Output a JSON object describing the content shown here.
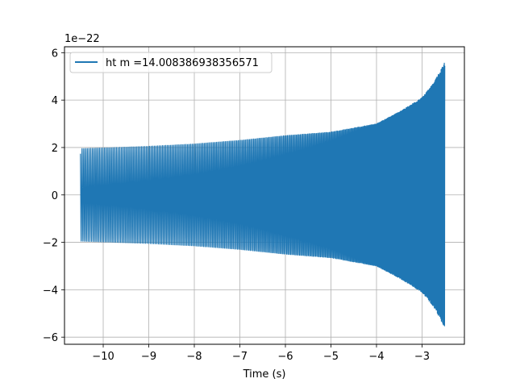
{
  "chart_data": {
    "type": "line",
    "xlabel": "Time (s)",
    "ylabel": "",
    "offset_text": "1e−22",
    "xlim": [
      -10.85,
      -2.07
    ],
    "ylim": [
      -6.3e-22,
      6.25e-22
    ],
    "xticks": [
      -10,
      -9,
      -8,
      -7,
      -6,
      -5,
      -4,
      -3
    ],
    "xtick_labels": [
      "−10",
      "−9",
      "−8",
      "−7",
      "−6",
      "−5",
      "−4",
      "−3"
    ],
    "yticks": [
      -6e-22,
      -4e-22,
      -2e-22,
      0,
      2e-22,
      4e-22,
      6e-22
    ],
    "ytick_labels": [
      "−6",
      "−4",
      "−2",
      "0",
      "2",
      "4",
      "6"
    ],
    "grid": true,
    "legend_position": "upper-left",
    "series": [
      {
        "name": "ht m =14.008386938356571",
        "color": "#1f77b4",
        "t_start": -10.5,
        "t_end": -2.5,
        "amplitude_start": 1.95e-22,
        "amplitude_end": 5.6e-22,
        "envelope": [
          [
            -10.5,
            1.95e-22
          ],
          [
            -9.0,
            2.05e-22
          ],
          [
            -8.0,
            2.15e-22
          ],
          [
            -7.0,
            2.3e-22
          ],
          [
            -6.0,
            2.5e-22
          ],
          [
            -5.0,
            2.65e-22
          ],
          [
            -4.0,
            3e-22
          ],
          [
            -3.5,
            3.5e-22
          ],
          [
            -3.0,
            4.1e-22
          ],
          [
            -2.75,
            4.7e-22
          ],
          [
            -2.5,
            5.6e-22
          ]
        ]
      }
    ]
  }
}
